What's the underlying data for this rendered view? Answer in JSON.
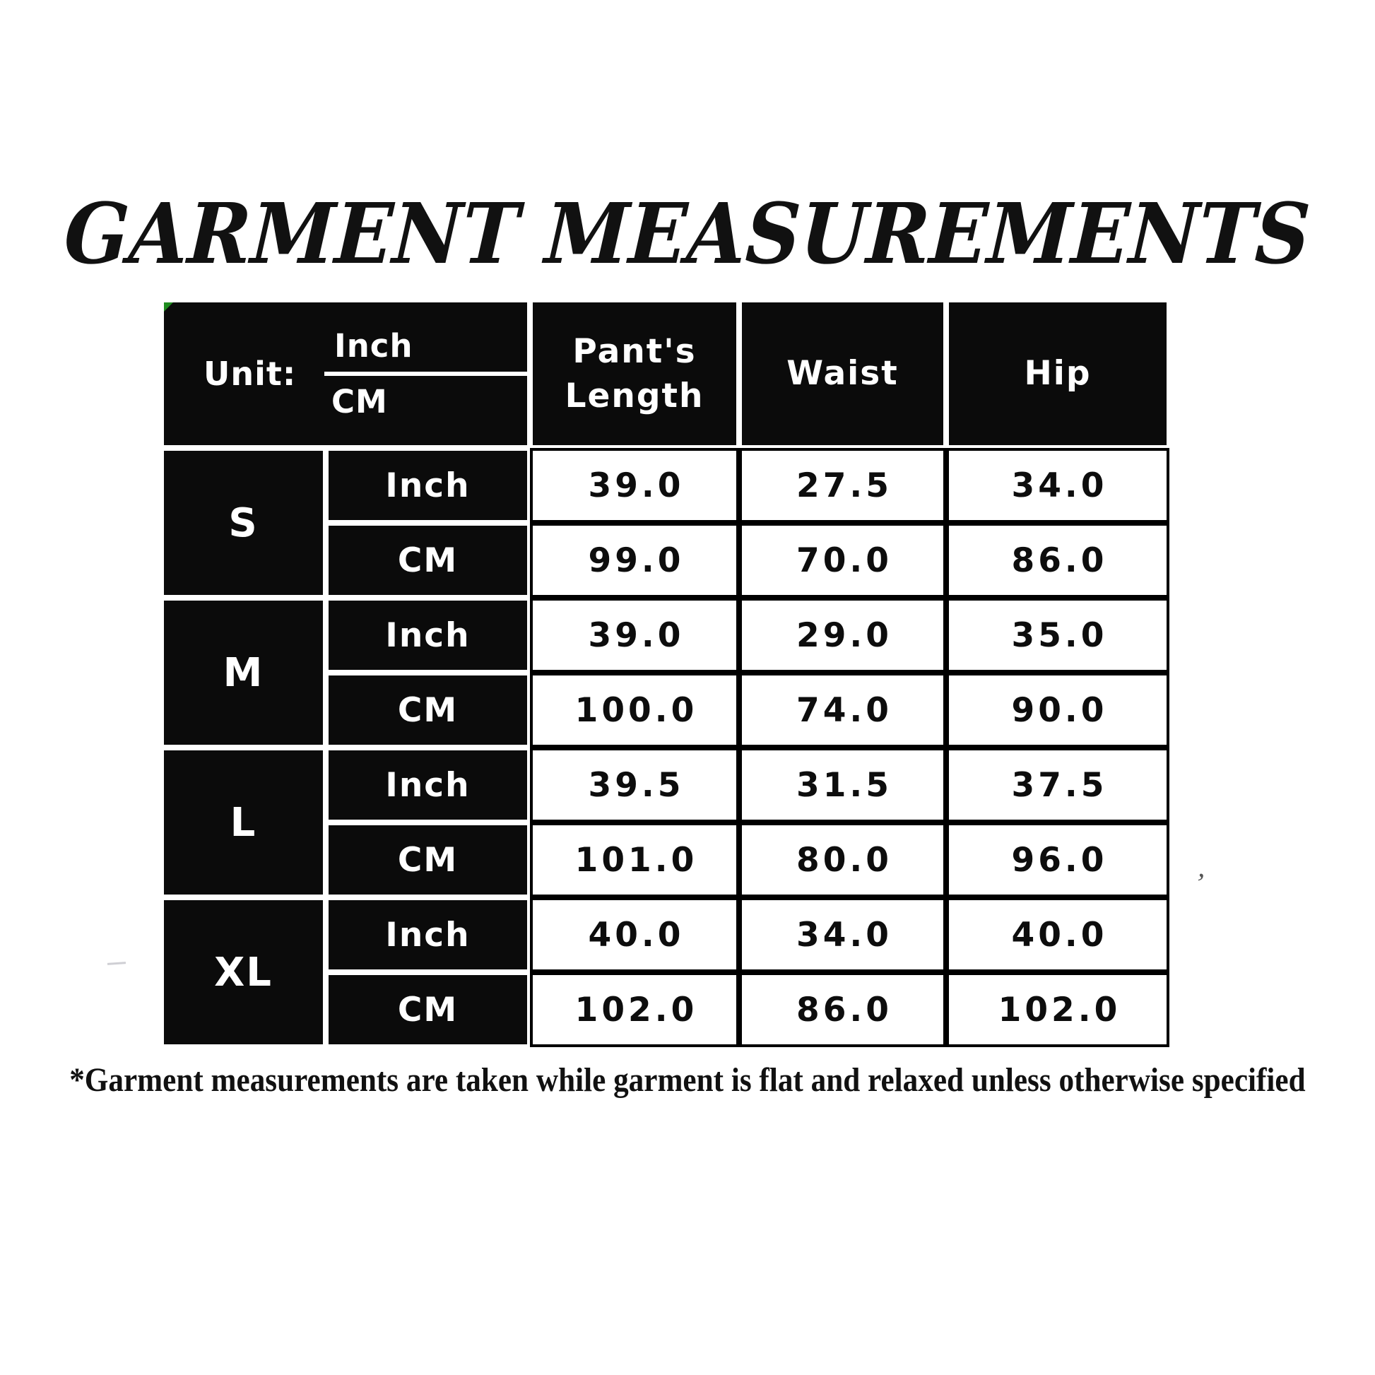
{
  "title": "GARMENT MEASUREMENTS",
  "footnote": "*Garment measurements are taken while garment is flat and relaxed unless otherwise specified",
  "table": {
    "unit_label": "Unit:",
    "unit_top": "Inch",
    "unit_bottom": "CM",
    "columns": [
      "Pant's Length",
      "Waist",
      "Hip"
    ],
    "groups": [
      {
        "size": "S",
        "rows": [
          {
            "unit": "Inch",
            "values": [
              "39.0",
              "27.5",
              "34.0"
            ]
          },
          {
            "unit": "CM",
            "values": [
              "99.0",
              "70.0",
              "86.0"
            ]
          }
        ]
      },
      {
        "size": "M",
        "rows": [
          {
            "unit": "Inch",
            "values": [
              "39.0",
              "29.0",
              "35.0"
            ]
          },
          {
            "unit": "CM",
            "values": [
              "100.0",
              "74.0",
              "90.0"
            ]
          }
        ]
      },
      {
        "size": "L",
        "rows": [
          {
            "unit": "Inch",
            "values": [
              "39.5",
              "31.5",
              "37.5"
            ]
          },
          {
            "unit": "CM",
            "values": [
              "101.0",
              "80.0",
              "96.0"
            ]
          }
        ]
      },
      {
        "size": "XL",
        "rows": [
          {
            "unit": "Inch",
            "values": [
              "40.0",
              "34.0",
              "40.0"
            ]
          },
          {
            "unit": "CM",
            "values": [
              "102.0",
              "86.0",
              "102.0"
            ]
          }
        ]
      }
    ]
  },
  "artifacts": {
    "stray_apostrophe": "’"
  },
  "colors": {
    "cell_black": "#0b0b0b",
    "cell_white": "#ffffff",
    "text_dark": "#0d0d0d",
    "corner_marker_green": "#1f8c1f"
  }
}
